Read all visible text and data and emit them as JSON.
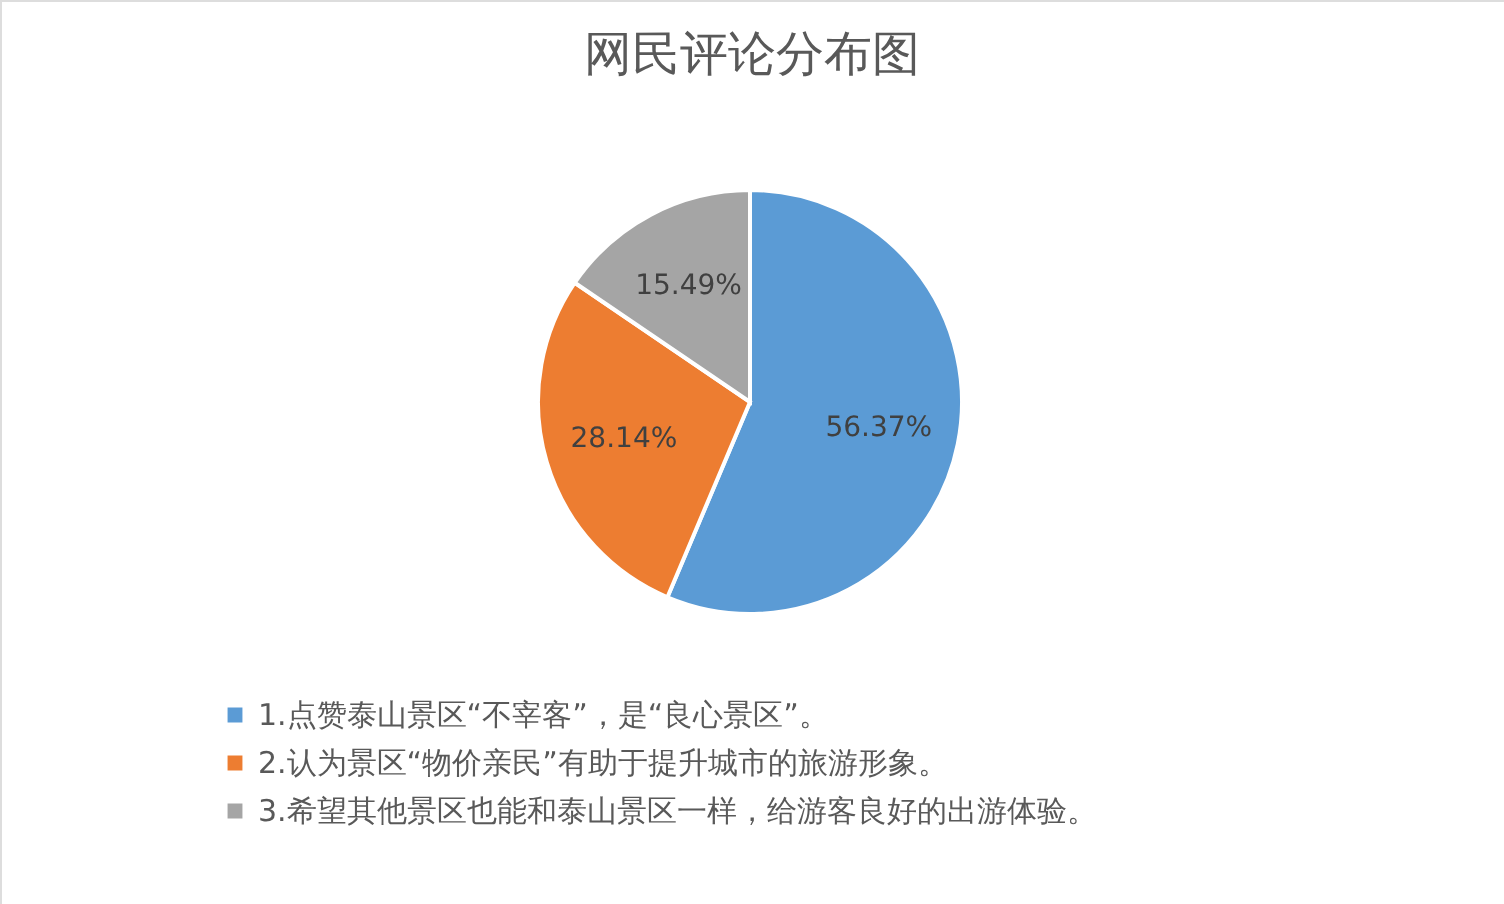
{
  "chart_data": {
    "type": "pie",
    "title": "网民评论分布图",
    "categories": [
      "1.点赞泰山景区“不宰客”，是“良心景区”。",
      "2.认为景区“物价亲民”有助于提升城市的旅游形象。",
      "3.希望其他景区也能和泰山景区一样，给游客良好的出游体验。"
    ],
    "values": [
      56.37,
      28.14,
      15.49
    ],
    "colors": [
      "#5b9bd5",
      "#ed7d31",
      "#a5a5a5"
    ],
    "value_labels": [
      "56.37%",
      "28.14%",
      "15.49%"
    ],
    "legend": "bottom left"
  }
}
